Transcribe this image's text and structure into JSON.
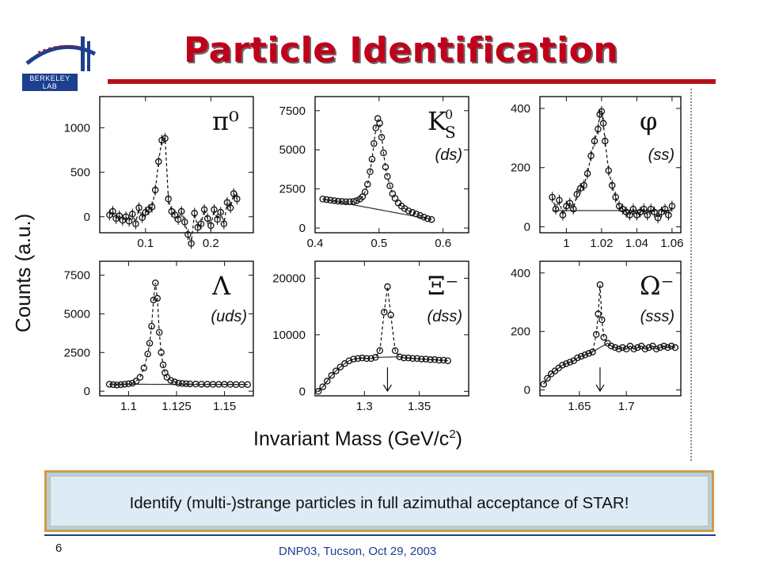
{
  "slide": {
    "title": "Particle Identification",
    "logo_text": "BERKELEY LAB",
    "caption": "Identify (multi-)strange particles in full azimuthal acceptance of STAR!",
    "slide_number": "6",
    "footer": "DNP03, Tucson, Oct 29, 2003",
    "title_color": "#c0001a",
    "accent_color": "#1d3f8f"
  },
  "chart_data": [
    {
      "type": "scatter",
      "particle": "π⁰",
      "quark_content": "",
      "ylabel": "Counts (a.u.)",
      "xlabel": "Invariant Mass (GeV/c²)",
      "xlim": [
        0.03,
        0.265
      ],
      "ylim": [
        -180,
        1350
      ],
      "xticks": [
        0.1,
        0.2
      ],
      "xtick_labels": [
        "0.1",
        "0.2"
      ],
      "yticks": [
        0,
        500,
        1000
      ],
      "ytick_labels": [
        "0",
        "500",
        "1000"
      ],
      "error_bars": true,
      "x": [
        0.045,
        0.05,
        0.055,
        0.06,
        0.065,
        0.07,
        0.075,
        0.08,
        0.085,
        0.09,
        0.095,
        0.1,
        0.105,
        0.11,
        0.115,
        0.12,
        0.125,
        0.13,
        0.135,
        0.14,
        0.145,
        0.15,
        0.155,
        0.16,
        0.165,
        0.17,
        0.175,
        0.18,
        0.185,
        0.19,
        0.195,
        0.2,
        0.205,
        0.21,
        0.215,
        0.22,
        0.225,
        0.23,
        0.235,
        0.24
      ],
      "y": [
        20,
        60,
        -20,
        10,
        -40,
        0,
        -50,
        30,
        -80,
        100,
        -10,
        50,
        80,
        110,
        300,
        620,
        860,
        880,
        200,
        60,
        20,
        -30,
        60,
        -60,
        -200,
        -300,
        40,
        -120,
        -80,
        80,
        -20,
        -100,
        80,
        -30,
        50,
        -80,
        160,
        100,
        260,
        200
      ]
    },
    {
      "type": "scatter",
      "particle": "K",
      "particle_sub": "S",
      "particle_sup": "0",
      "quark_content": "(ds)",
      "xlim": [
        0.4,
        0.64
      ],
      "ylim": [
        -300,
        8400
      ],
      "xticks": [
        0.4,
        0.5,
        0.6
      ],
      "xtick_labels": [
        "0.4",
        "0.5",
        "0.6"
      ],
      "yticks": [
        0,
        2500,
        5000,
        7500
      ],
      "ytick_labels": [
        "0",
        "2500",
        "5000",
        "7500"
      ],
      "background_fit": true,
      "x": [
        0.412,
        0.418,
        0.424,
        0.43,
        0.436,
        0.442,
        0.448,
        0.454,
        0.46,
        0.465,
        0.47,
        0.474,
        0.478,
        0.482,
        0.486,
        0.489,
        0.492,
        0.495,
        0.498,
        0.501,
        0.504,
        0.507,
        0.51,
        0.513,
        0.517,
        0.521,
        0.525,
        0.53,
        0.535,
        0.54,
        0.546,
        0.552,
        0.558,
        0.564,
        0.57,
        0.576,
        0.582
      ],
      "y": [
        1850,
        1820,
        1780,
        1750,
        1720,
        1700,
        1680,
        1680,
        1700,
        1750,
        1850,
        2000,
        2300,
        2800,
        3600,
        4400,
        5400,
        6400,
        7000,
        6700,
        5800,
        4800,
        3900,
        3300,
        2700,
        2200,
        1900,
        1600,
        1400,
        1250,
        1100,
        1000,
        900,
        800,
        700,
        600,
        550
      ]
    },
    {
      "type": "scatter",
      "particle": "φ",
      "quark_content": "(ss)",
      "xlim": [
        0.985,
        1.065
      ],
      "ylim": [
        -20,
        440
      ],
      "xticks": [
        1,
        1.02,
        1.04,
        1.06
      ],
      "xtick_labels": [
        "1",
        "1.02",
        "1.04",
        "1.06"
      ],
      "yticks": [
        0,
        200,
        400
      ],
      "ytick_labels": [
        "0",
        "200",
        "400"
      ],
      "error_bars": true,
      "background_fit": true,
      "x": [
        0.992,
        0.994,
        0.996,
        0.998,
        1,
        1.002,
        1.004,
        1.006,
        1.008,
        1.01,
        1.012,
        1.014,
        1.016,
        1.018,
        1.019,
        1.02,
        1.021,
        1.022,
        1.024,
        1.026,
        1.028,
        1.03,
        1.032,
        1.034,
        1.036,
        1.038,
        1.04,
        1.042,
        1.044,
        1.046,
        1.048,
        1.05,
        1.052,
        1.054,
        1.056,
        1.058,
        1.06
      ],
      "y": [
        100,
        60,
        90,
        40,
        70,
        80,
        60,
        110,
        130,
        140,
        180,
        240,
        290,
        330,
        380,
        390,
        350,
        290,
        190,
        140,
        100,
        70,
        60,
        50,
        40,
        60,
        40,
        50,
        60,
        40,
        60,
        50,
        30,
        50,
        60,
        40,
        70
      ]
    },
    {
      "type": "scatter",
      "particle": "Λ",
      "quark_content": "(uds)",
      "xlim": [
        1.085,
        1.165
      ],
      "ylim": [
        -300,
        8400
      ],
      "xticks": [
        1.1,
        1.125,
        1.15
      ],
      "xtick_labels": [
        "1.1",
        "1.125",
        "1.15"
      ],
      "yticks": [
        0,
        2500,
        5000,
        7500
      ],
      "ytick_labels": [
        "0",
        "2500",
        "5000",
        "7500"
      ],
      "background_fit": true,
      "x": [
        1.09,
        1.092,
        1.094,
        1.096,
        1.098,
        1.1,
        1.102,
        1.104,
        1.106,
        1.108,
        1.11,
        1.111,
        1.112,
        1.113,
        1.114,
        1.115,
        1.116,
        1.117,
        1.118,
        1.119,
        1.12,
        1.122,
        1.124,
        1.126,
        1.128,
        1.13,
        1.132,
        1.135,
        1.138,
        1.141,
        1.144,
        1.147,
        1.15,
        1.153,
        1.156,
        1.159,
        1.162
      ],
      "y": [
        450,
        420,
        400,
        420,
        450,
        480,
        520,
        650,
        900,
        1500,
        2400,
        3100,
        4200,
        5900,
        7000,
        6000,
        3800,
        2500,
        1700,
        1200,
        900,
        700,
        600,
        520,
        500,
        480,
        470,
        460,
        450,
        450,
        440,
        440,
        440,
        440,
        430,
        430,
        430
      ]
    },
    {
      "type": "scatter",
      "particle": "Ξ⁻",
      "quark_content": "(dss)",
      "xlim": [
        1.255,
        1.395
      ],
      "ylim": [
        -800,
        23000
      ],
      "xticks": [
        1.3,
        1.35
      ],
      "xtick_labels": [
        "1.3",
        "1.35"
      ],
      "yticks": [
        0,
        10000,
        20000
      ],
      "ytick_labels": [
        "0",
        "10000",
        "20000"
      ],
      "background_fit": true,
      "arrow_at": 1.321,
      "x": [
        1.258,
        1.262,
        1.266,
        1.27,
        1.274,
        1.278,
        1.282,
        1.286,
        1.29,
        1.294,
        1.298,
        1.302,
        1.306,
        1.31,
        1.314,
        1.318,
        1.321,
        1.324,
        1.328,
        1.332,
        1.336,
        1.34,
        1.344,
        1.348,
        1.352,
        1.356,
        1.36,
        1.364,
        1.368,
        1.372,
        1.376
      ],
      "y": [
        0,
        800,
        1800,
        2800,
        3600,
        4300,
        4900,
        5400,
        5700,
        5800,
        5900,
        5800,
        5800,
        6000,
        7200,
        14000,
        18500,
        13500,
        7200,
        6100,
        5900,
        5900,
        5800,
        5800,
        5700,
        5700,
        5600,
        5600,
        5500,
        5500,
        5400
      ]
    },
    {
      "type": "scatter",
      "particle": "Ω⁻",
      "quark_content": "(sss)",
      "xlim": [
        1.608,
        1.758
      ],
      "ylim": [
        -20,
        440
      ],
      "xticks": [
        1.65,
        1.7
      ],
      "xtick_labels": [
        "1.65",
        "1.7"
      ],
      "yticks": [
        0,
        200,
        400
      ],
      "ytick_labels": [
        "0",
        "200",
        "400"
      ],
      "background_fit": true,
      "arrow_at": 1.672,
      "x": [
        1.612,
        1.616,
        1.62,
        1.624,
        1.628,
        1.632,
        1.636,
        1.64,
        1.644,
        1.648,
        1.652,
        1.656,
        1.66,
        1.664,
        1.668,
        1.67,
        1.672,
        1.674,
        1.676,
        1.68,
        1.684,
        1.688,
        1.692,
        1.696,
        1.7,
        1.704,
        1.708,
        1.712,
        1.716,
        1.72,
        1.724,
        1.728,
        1.732,
        1.736,
        1.74,
        1.744,
        1.748,
        1.752
      ],
      "y": [
        20,
        40,
        55,
        65,
        75,
        85,
        90,
        95,
        100,
        110,
        115,
        120,
        125,
        130,
        190,
        260,
        360,
        240,
        180,
        160,
        150,
        145,
        140,
        145,
        140,
        150,
        140,
        145,
        150,
        140,
        145,
        150,
        140,
        145,
        150,
        145,
        150,
        145
      ]
    }
  ]
}
